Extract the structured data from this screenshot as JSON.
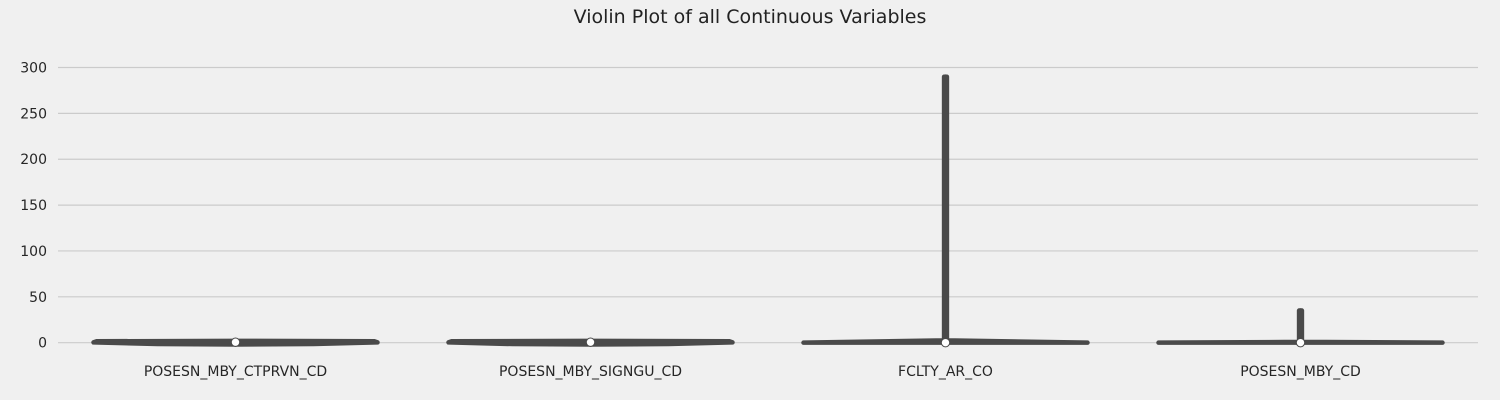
{
  "chart_data": {
    "type": "violin",
    "title": "Violin Plot of all Continuous Variables",
    "xlabel": "",
    "ylabel": "",
    "ylim": [
      -8,
      330
    ],
    "yticks": [
      0,
      50,
      100,
      150,
      200,
      250,
      300
    ],
    "ytick_labels": [
      "0",
      "50",
      "100",
      "150",
      "200",
      "250",
      "300"
    ],
    "grid": "horizontal",
    "categories": [
      "POSESN_MBY_CTPRVN_CD",
      "POSESN_MBY_SIGNGU_CD",
      "FCLTY_AR_CO",
      "POSESN_MBY_CD"
    ],
    "series": [
      {
        "category": "POSESN_MBY_CTPRVN_CD",
        "min": -2,
        "max": 2,
        "median": 0.5,
        "shape": [
          {
            "y": -2,
            "w": 0.0
          },
          {
            "y": -1.5,
            "w": 0.55
          },
          {
            "y": 0.3,
            "w": 1.0
          },
          {
            "y": 1.5,
            "w": 0.98
          },
          {
            "y": 2,
            "w": 0.0
          }
        ]
      },
      {
        "category": "POSESN_MBY_SIGNGU_CD",
        "min": -2,
        "max": 2,
        "median": 0.5,
        "shape": [
          {
            "y": -2,
            "w": 0.0
          },
          {
            "y": -1.5,
            "w": 0.55
          },
          {
            "y": 0.3,
            "w": 1.0
          },
          {
            "y": 1.5,
            "w": 0.98
          },
          {
            "y": 2,
            "w": 0.0
          }
        ]
      },
      {
        "category": "FCLTY_AR_CO",
        "min": 0,
        "max": 290,
        "median": 0,
        "shape": [
          {
            "y": 0,
            "w": 1.0
          },
          {
            "y": 2.5,
            "w": 0.01
          },
          {
            "y": 290,
            "w": 0.01
          }
        ]
      },
      {
        "category": "POSESN_MBY_CD",
        "min": 0,
        "max": 35,
        "median": 0,
        "shape": [
          {
            "y": 0,
            "w": 1.0
          },
          {
            "y": 0.8,
            "w": 0.01
          },
          {
            "y": 35,
            "w": 0.01
          }
        ]
      }
    ],
    "colors": {
      "background": "#f0f0f0",
      "violin_stroke": "#4a4a4a",
      "violin_fill": "#4a4a4a",
      "grid": "#cbcbcb",
      "median_marker_fill": "#ffffff",
      "median_marker_stroke": "#4a4a4a"
    }
  }
}
